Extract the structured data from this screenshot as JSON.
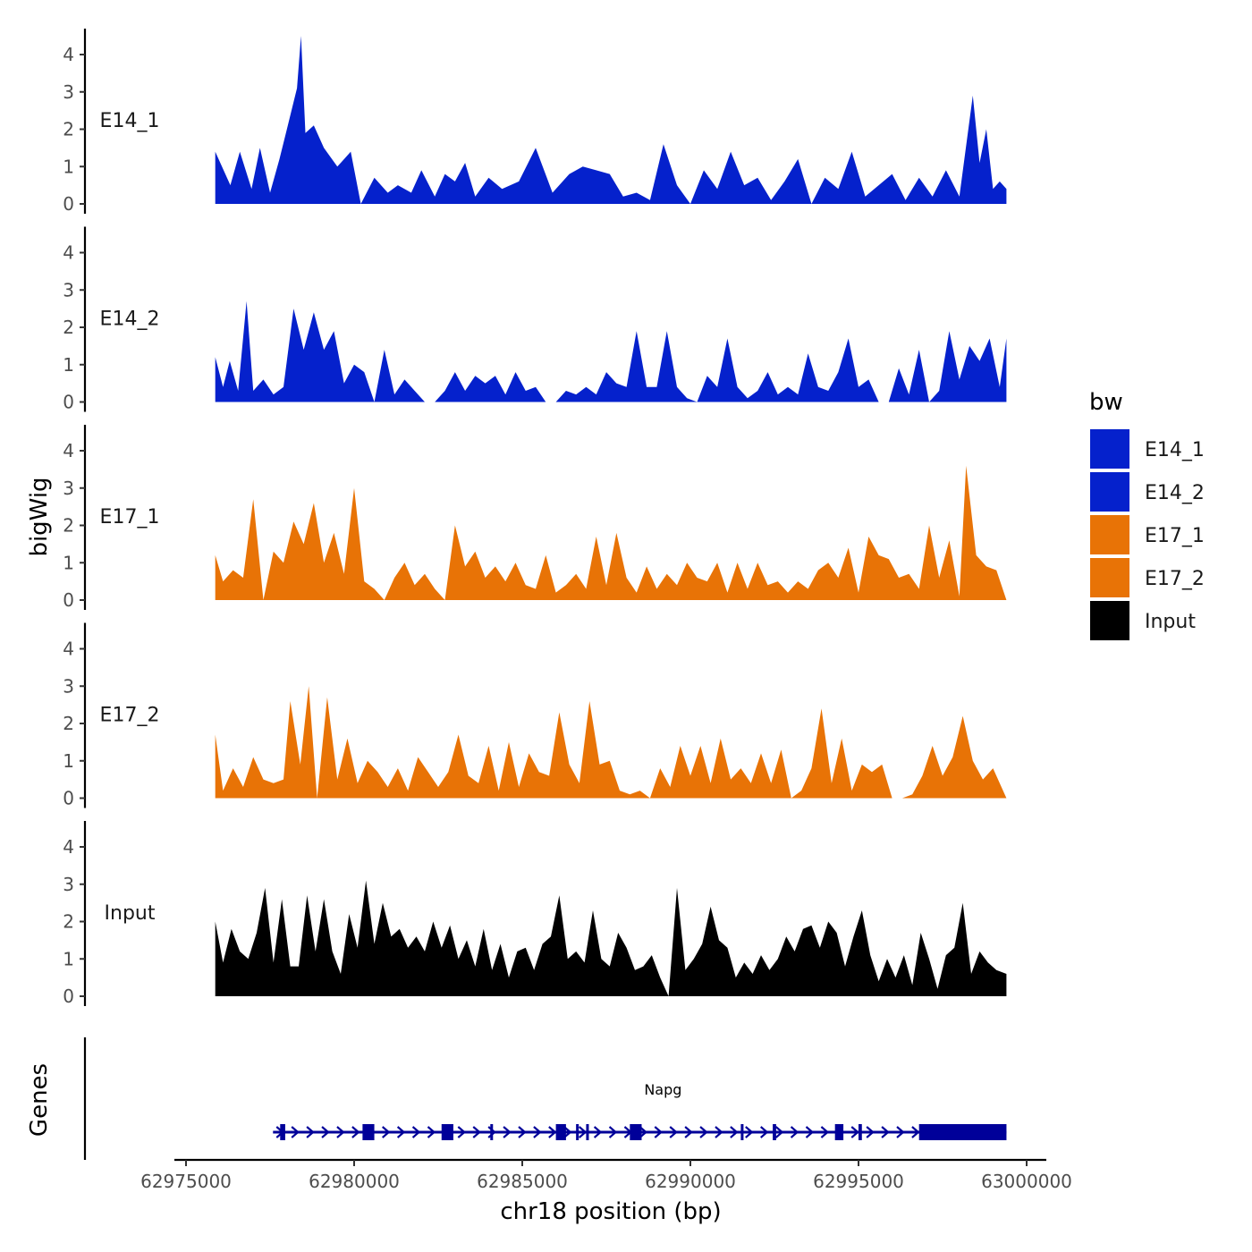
{
  "chart_data": {
    "type": "area",
    "chromosome": "chr18",
    "xlabel": "chr18 position (bp)",
    "ylabel": "bigWig",
    "genes_label": "Genes",
    "xlim": [
      62974700,
      63000600
    ],
    "x_ticks": [
      62975000,
      62980000,
      62985000,
      62990000,
      62995000,
      63000000
    ],
    "x_tick_labels": [
      "62975000",
      "62980000",
      "62985000",
      "62990000",
      "62995000",
      "63000000"
    ],
    "ylim": [
      0,
      4.6
    ],
    "y_ticks": [
      0,
      1,
      2,
      3,
      4
    ],
    "y_tick_labels": [
      "0",
      "1",
      "2",
      "3",
      "4"
    ],
    "legend": {
      "title": "bw",
      "position": "right",
      "entries": [
        {
          "label": "E14_1",
          "color": "#0521CC"
        },
        {
          "label": "E14_2",
          "color": "#0521CC"
        },
        {
          "label": "E17_1",
          "color": "#E87306"
        },
        {
          "label": "E17_2",
          "color": "#E87306"
        },
        {
          "label": "Input",
          "color": "#000000"
        }
      ]
    },
    "tracks": [
      {
        "name": "E14_1",
        "color": "#0521CC",
        "x": [
          62975870,
          62976320,
          62976600,
          62976950,
          62977200,
          62977500,
          62977780,
          62978000,
          62978300,
          62978420,
          62978550,
          62978800,
          62979100,
          62979500,
          62979900,
          62980200,
          62980600,
          62981000,
          62981300,
          62981700,
          62982000,
          62982400,
          62982700,
          62983000,
          62983300,
          62983600,
          62984000,
          62984400,
          62984900,
          62985400,
          62985900,
          62986400,
          62986800,
          62987200,
          62987600,
          62988000,
          62988400,
          62988800,
          62989200,
          62989600,
          62990000,
          62990400,
          62990800,
          62991200,
          62991600,
          62992000,
          62992400,
          62992800,
          62993200,
          62993600,
          62994000,
          62994400,
          62994800,
          62995200,
          62995600,
          62996000,
          62996400,
          62996800,
          62997200,
          62997600,
          62998000,
          62998400,
          62998600,
          62998800,
          62999000,
          62999200,
          62999400
        ],
        "values": [
          1.4,
          0.5,
          1.4,
          0.4,
          1.5,
          0.3,
          1.2,
          2.0,
          3.1,
          4.5,
          1.9,
          2.1,
          1.5,
          1.0,
          1.4,
          0.0,
          0.7,
          0.3,
          0.5,
          0.3,
          0.9,
          0.2,
          0.8,
          0.6,
          1.1,
          0.2,
          0.7,
          0.4,
          0.6,
          1.5,
          0.3,
          0.8,
          1.0,
          0.9,
          0.8,
          0.2,
          0.3,
          0.1,
          1.6,
          0.5,
          0.0,
          0.9,
          0.4,
          1.4,
          0.5,
          0.7,
          0.1,
          0.6,
          1.2,
          0.0,
          0.7,
          0.4,
          1.4,
          0.2,
          0.5,
          0.8,
          0.1,
          0.7,
          0.2,
          0.9,
          0.2,
          2.9,
          1.1,
          2.0,
          0.4,
          0.6,
          0.4
        ]
      },
      {
        "name": "E14_2",
        "color": "#0521CC",
        "x": [
          62975870,
          62976100,
          62976300,
          62976550,
          62976800,
          62977000,
          62977300,
          62977600,
          62977900,
          62978200,
          62978500,
          62978800,
          62979100,
          62979400,
          62979700,
          62980000,
          62980300,
          62980600,
          62980900,
          62981200,
          62981500,
          62981800,
          62982100,
          62982400,
          62982700,
          62983000,
          62983300,
          62983600,
          62983900,
          62984200,
          62984500,
          62984800,
          62985100,
          62985400,
          62985700,
          62986000,
          62986300,
          62986600,
          62986900,
          62987200,
          62987500,
          62987800,
          62988100,
          62988400,
          62988700,
          62989000,
          62989300,
          62989600,
          62989900,
          62990200,
          62990500,
          62990800,
          62991100,
          62991400,
          62991700,
          62992000,
          62992300,
          62992600,
          62992900,
          62993200,
          62993500,
          62993800,
          62994100,
          62994400,
          62994700,
          62995000,
          62995300,
          62995600,
          62995900,
          62996200,
          62996500,
          62996800,
          62997100,
          62997400,
          62997700,
          62998000,
          62998300,
          62998600,
          62998900,
          62999200,
          62999400
        ],
        "values": [
          1.2,
          0.4,
          1.1,
          0.3,
          2.7,
          0.3,
          0.6,
          0.2,
          0.4,
          2.5,
          1.4,
          2.4,
          1.4,
          1.9,
          0.5,
          1.0,
          0.8,
          0.0,
          1.4,
          0.2,
          0.6,
          0.3,
          0.0,
          0.0,
          0.3,
          0.8,
          0.3,
          0.7,
          0.5,
          0.7,
          0.2,
          0.8,
          0.3,
          0.4,
          0.0,
          0.0,
          0.3,
          0.2,
          0.4,
          0.2,
          0.8,
          0.5,
          0.4,
          1.9,
          0.4,
          0.4,
          1.9,
          0.4,
          0.1,
          0.0,
          0.7,
          0.4,
          1.7,
          0.4,
          0.1,
          0.3,
          0.8,
          0.2,
          0.4,
          0.2,
          1.3,
          0.4,
          0.3,
          0.8,
          1.7,
          0.4,
          0.6,
          0.0,
          0.0,
          0.9,
          0.2,
          1.4,
          0.0,
          0.3,
          1.9,
          0.6,
          1.5,
          1.1,
          1.7,
          0.4,
          1.7
        ]
      },
      {
        "name": "E17_1",
        "color": "#E87306",
        "x": [
          62975870,
          62976100,
          62976400,
          62976700,
          62977000,
          62977300,
          62977600,
          62977900,
          62978200,
          62978500,
          62978800,
          62979100,
          62979400,
          62979700,
          62980000,
          62980300,
          62980600,
          62980900,
          62981200,
          62981500,
          62981800,
          62982100,
          62982400,
          62982700,
          62983000,
          62983300,
          62983600,
          62983900,
          62984200,
          62984500,
          62984800,
          62985100,
          62985400,
          62985700,
          62986000,
          62986300,
          62986600,
          62986900,
          62987200,
          62987500,
          62987800,
          62988100,
          62988400,
          62988700,
          62989000,
          62989300,
          62989600,
          62989900,
          62990200,
          62990500,
          62990800,
          62991100,
          62991400,
          62991700,
          62992000,
          62992300,
          62992600,
          62992900,
          62993200,
          62993500,
          62993800,
          62994100,
          62994400,
          62994700,
          62995000,
          62995300,
          62995600,
          62995900,
          62996200,
          62996500,
          62996800,
          62997100,
          62997400,
          62997700,
          62998000,
          62998200,
          62998500,
          62998800,
          62999100,
          62999400
        ],
        "values": [
          1.2,
          0.5,
          0.8,
          0.6,
          2.7,
          0.0,
          1.3,
          1.0,
          2.1,
          1.5,
          2.6,
          1.0,
          1.8,
          0.7,
          3.0,
          0.5,
          0.3,
          0.0,
          0.6,
          1.0,
          0.4,
          0.7,
          0.3,
          0.0,
          2.0,
          0.9,
          1.3,
          0.6,
          0.9,
          0.5,
          1.0,
          0.4,
          0.3,
          1.2,
          0.2,
          0.4,
          0.7,
          0.3,
          1.7,
          0.4,
          1.8,
          0.6,
          0.2,
          0.9,
          0.3,
          0.7,
          0.4,
          1.0,
          0.6,
          0.5,
          1.0,
          0.2,
          1.0,
          0.3,
          1.0,
          0.4,
          0.5,
          0.2,
          0.5,
          0.3,
          0.8,
          1.0,
          0.6,
          1.4,
          0.2,
          1.7,
          1.2,
          1.1,
          0.6,
          0.7,
          0.3,
          2.0,
          0.6,
          1.6,
          0.1,
          3.6,
          1.2,
          0.9,
          0.8,
          0.0
        ]
      },
      {
        "name": "E17_2",
        "color": "#E87306",
        "x": [
          62975870,
          62976100,
          62976400,
          62976700,
          62977000,
          62977300,
          62977600,
          62977900,
          62978100,
          62978400,
          62978650,
          62978900,
          62979200,
          62979500,
          62979800,
          62980100,
          62980400,
          62980700,
          62981000,
          62981300,
          62981600,
          62981900,
          62982200,
          62982500,
          62982800,
          62983100,
          62983400,
          62983700,
          62984000,
          62984300,
          62984600,
          62984900,
          62985200,
          62985500,
          62985800,
          62986100,
          62986400,
          62986700,
          62987000,
          62987300,
          62987600,
          62987900,
          62988200,
          62988500,
          62988800,
          62989100,
          62989400,
          62989700,
          62990000,
          62990300,
          62990600,
          62990900,
          62991200,
          62991500,
          62991800,
          62992100,
          62992400,
          62992700,
          62993000,
          62993300,
          62993600,
          62993900,
          62994200,
          62994500,
          62994800,
          62995100,
          62995400,
          62995700,
          62996000,
          62996300,
          62996600,
          62996900,
          62997200,
          62997500,
          62997800,
          62998100,
          62998400,
          62998700,
          62999000,
          62999400
        ],
        "values": [
          1.7,
          0.2,
          0.8,
          0.3,
          1.1,
          0.5,
          0.4,
          0.5,
          2.6,
          0.9,
          3.0,
          0.0,
          2.7,
          0.5,
          1.6,
          0.4,
          1.0,
          0.7,
          0.3,
          0.8,
          0.2,
          1.1,
          0.7,
          0.3,
          0.7,
          1.7,
          0.6,
          0.4,
          1.4,
          0.2,
          1.5,
          0.3,
          1.2,
          0.7,
          0.6,
          2.3,
          0.9,
          0.4,
          2.6,
          0.9,
          1.0,
          0.2,
          0.1,
          0.2,
          0.0,
          0.8,
          0.3,
          1.4,
          0.6,
          1.4,
          0.4,
          1.6,
          0.5,
          0.8,
          0.4,
          1.2,
          0.4,
          1.3,
          0.0,
          0.2,
          0.8,
          2.4,
          0.4,
          1.6,
          0.2,
          0.9,
          0.7,
          0.9,
          0.0,
          0.0,
          0.1,
          0.6,
          1.4,
          0.6,
          1.1,
          2.2,
          1.0,
          0.5,
          0.8,
          0.0
        ]
      },
      {
        "name": "Input",
        "color": "#000000",
        "x": [
          62975870,
          62976100,
          62976350,
          62976600,
          62976850,
          62977100,
          62977350,
          62977600,
          62977850,
          62978100,
          62978350,
          62978600,
          62978850,
          62979100,
          62979350,
          62979600,
          62979850,
          62980100,
          62980350,
          62980600,
          62980850,
          62981100,
          62981350,
          62981600,
          62981850,
          62982100,
          62982350,
          62982600,
          62982850,
          62983100,
          62983350,
          62983600,
          62983850,
          62984100,
          62984350,
          62984600,
          62984850,
          62985100,
          62985350,
          62985600,
          62985850,
          62986100,
          62986350,
          62986600,
          62986850,
          62987100,
          62987350,
          62987600,
          62987850,
          62988100,
          62988350,
          62988600,
          62988850,
          62989100,
          62989350,
          62989600,
          62989850,
          62990100,
          62990350,
          62990600,
          62990850,
          62991100,
          62991350,
          62991600,
          62991850,
          62992100,
          62992350,
          62992600,
          62992850,
          62993100,
          62993350,
          62993600,
          62993850,
          62994100,
          62994350,
          62994600,
          62994850,
          62995100,
          62995350,
          62995600,
          62995850,
          62996100,
          62996350,
          62996600,
          62996850,
          62997100,
          62997350,
          62997600,
          62997850,
          62998100,
          62998350,
          62998600,
          62998850,
          62999100,
          62999400
        ],
        "values": [
          2.0,
          0.9,
          1.8,
          1.2,
          1.0,
          1.7,
          2.9,
          0.9,
          2.6,
          0.8,
          0.8,
          2.7,
          1.2,
          2.6,
          1.2,
          0.6,
          2.2,
          1.3,
          3.1,
          1.4,
          2.5,
          1.6,
          1.8,
          1.3,
          1.6,
          1.2,
          2.0,
          1.3,
          1.9,
          1.0,
          1.5,
          0.8,
          1.8,
          0.7,
          1.4,
          0.5,
          1.2,
          1.3,
          0.7,
          1.4,
          1.6,
          2.7,
          1.0,
          1.2,
          0.9,
          2.3,
          1.0,
          0.8,
          1.7,
          1.3,
          0.7,
          0.8,
          1.1,
          0.5,
          0.0,
          2.9,
          0.7,
          1.0,
          1.4,
          2.4,
          1.5,
          1.3,
          0.5,
          0.9,
          0.6,
          1.1,
          0.7,
          1.0,
          1.6,
          1.2,
          1.8,
          1.9,
          1.3,
          2.0,
          1.7,
          0.8,
          1.6,
          2.3,
          1.1,
          0.4,
          1.0,
          0.5,
          1.1,
          0.3,
          1.7,
          1.0,
          0.2,
          1.1,
          1.3,
          2.5,
          0.6,
          1.2,
          0.9,
          0.7,
          0.6
        ]
      }
    ],
    "gene": {
      "name": "Napg",
      "start": 62977800,
      "end": 62999400,
      "color": "#000099",
      "exons": [
        [
          62977800,
          62977950
        ],
        [
          62980250,
          62980600
        ],
        [
          62982600,
          62982950
        ],
        [
          62984050,
          62984100
        ],
        [
          62986000,
          62986300
        ],
        [
          62986600,
          62986650
        ],
        [
          62986900,
          62986950
        ],
        [
          62988200,
          62988550
        ],
        [
          62991500,
          62991550
        ],
        [
          62992450,
          62992550
        ],
        [
          62994300,
          62994550
        ],
        [
          62995000,
          62995100
        ],
        [
          62996800,
          62999400
        ]
      ],
      "arrow_spacing": 450
    }
  }
}
